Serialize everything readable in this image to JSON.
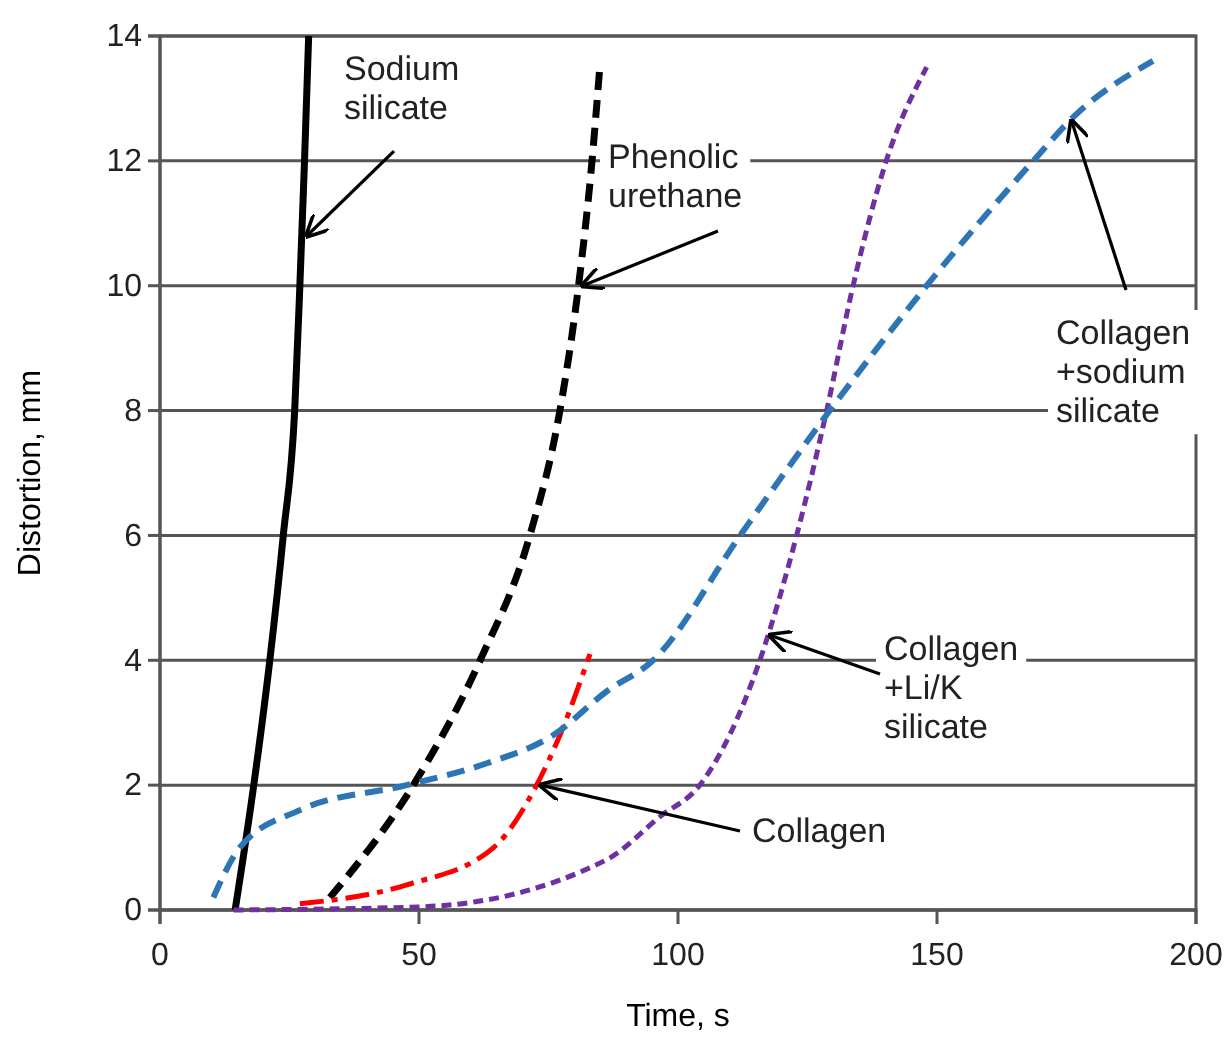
{
  "chart_data": {
    "type": "line",
    "xlabel": "Time, s",
    "ylabel": "Distortion, mm",
    "xlim": [
      0,
      200
    ],
    "ylim": [
      0,
      14
    ],
    "xticks": [
      0,
      50,
      100,
      150,
      200
    ],
    "yticks": [
      0,
      2,
      4,
      6,
      8,
      10,
      12,
      14
    ],
    "grid": "y",
    "marker": "none",
    "series": [
      {
        "color": "#000000",
        "line_style": "solid",
        "x": [
          14.5,
          18.1,
          21.2,
          23.8,
          26,
          27,
          27.9,
          28.7
        ],
        "values": [
          0,
          2,
          4,
          6,
          8,
          10,
          12,
          14
        ]
      },
      {
        "color": "#000000",
        "line_style": "dashed",
        "x": [
          32.8,
          48.9,
          61.8,
          71.4,
          77.2,
          80.8,
          83.4,
          84.9
        ],
        "values": [
          0.2,
          2,
          4,
          6,
          8,
          10,
          12,
          13.5
        ]
      },
      {
        "color": "#ff0000",
        "line_style": "dashdot",
        "x": [
          27,
          47.5,
          64.4,
          72.7,
          77.2,
          83
        ],
        "values": [
          0.1,
          0.4,
          1,
          2,
          2.8,
          4.1
        ]
      },
      {
        "color": "#7030a0",
        "line_style": "dotted",
        "x": [
          14.2,
          50.2,
          86.1,
          96.6,
          104.2,
          115.8,
          122.9,
          128.7,
          133.8,
          140.2,
          148
        ],
        "values": [
          0,
          0.05,
          0.8,
          1.5,
          2,
          4,
          6,
          8,
          10,
          12,
          13.5
        ]
      },
      {
        "color": "#2e75b6",
        "line_style": "dashed",
        "x": [
          10.3,
          15.4,
          27,
          47.6,
          63.1,
          75.9,
          86.2,
          95.2,
          112,
          129.3,
          148,
          168.6,
          176.3,
          191.7
        ],
        "values": [
          0.2,
          1,
          1.6,
          2,
          2.35,
          2.8,
          3.5,
          4,
          6,
          8,
          10,
          12,
          12.7,
          13.6
        ]
      }
    ],
    "annotations": [
      {
        "text": "Sodium\nsilicate",
        "x": 27.6,
        "y": 10.8
      },
      {
        "text": "Phenolic\nurethane",
        "x": 80.8,
        "y": 10
      },
      {
        "text": "Collagen",
        "x": 72.7,
        "y": 2
      },
      {
        "text": "Collagen\n+Li/K\nsilicate",
        "x": 117,
        "y": 4.4
      },
      {
        "text": "Collagen\n+sodium\nsilicate",
        "x": 176,
        "y": 12.7
      }
    ]
  }
}
